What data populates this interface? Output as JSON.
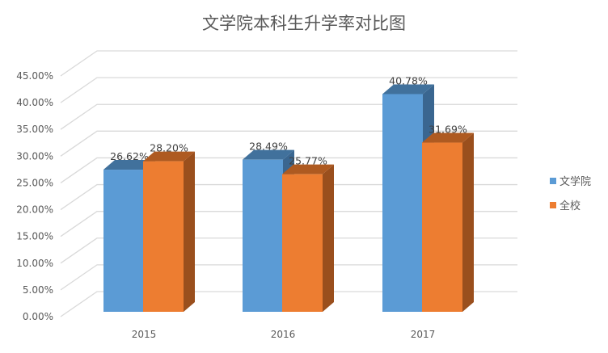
{
  "chart_data": {
    "type": "bar",
    "title": "文学院本科生升学率对比图",
    "categories": [
      "2015",
      "2016",
      "2017"
    ],
    "series": [
      {
        "name": "文学院",
        "values": [
          26.62,
          28.49,
          40.78
        ],
        "labels": [
          "26.62%",
          "28.49%",
          "40.78%"
        ],
        "color": "#5B9BD5"
      },
      {
        "name": "全校",
        "values": [
          28.2,
          25.77,
          31.69
        ],
        "labels": [
          "28.20%",
          "25.77%",
          "31.69%"
        ],
        "color": "#ED7D31"
      }
    ],
    "yticks": [
      "0.00%",
      "5.00%",
      "10.00%",
      "15.00%",
      "20.00%",
      "25.00%",
      "30.00%",
      "35.00%",
      "40.00%",
      "45.00%"
    ],
    "ylim": [
      0,
      45
    ],
    "grid": true,
    "legend": "right",
    "style": "3d-clustered-column"
  }
}
